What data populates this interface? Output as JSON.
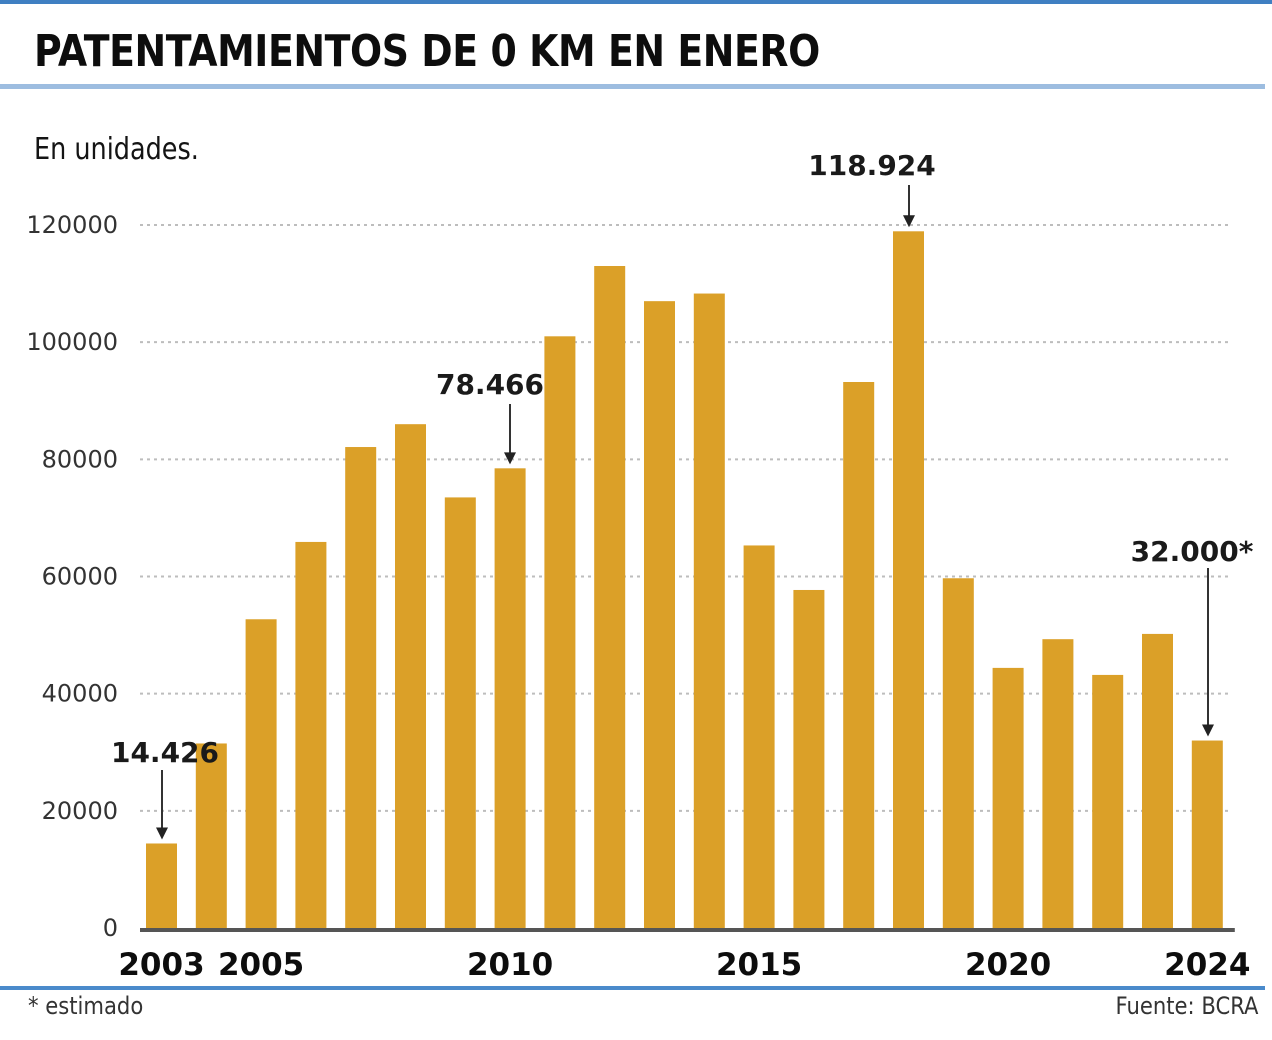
{
  "header": {
    "title": "PATENTAMIENTOS DE 0 KM EN ENERO",
    "subtitle": "En unidades."
  },
  "footer": {
    "footnote": "* estimado",
    "source": "Fuente: BCRA"
  },
  "colors": {
    "bar": "#DBA028",
    "rule": "#4A8ACB",
    "gridline": "#BDBDBD",
    "axis": "#555555",
    "text": "#111111"
  },
  "chart_data": {
    "type": "bar",
    "title": "PATENTAMIENTOS DE 0 KM EN ENERO",
    "subtitle": "En unidades.",
    "xlabel": "",
    "ylabel": "En unidades.",
    "ylim": [
      0,
      120000
    ],
    "yticks": [
      0,
      20000,
      40000,
      60000,
      80000,
      100000,
      120000
    ],
    "ytick_labels": [
      "0",
      "20000",
      "40000",
      "60000",
      "80000",
      "100000",
      "120000"
    ],
    "grid": true,
    "categories": [
      "2003",
      "2004",
      "2005",
      "2006",
      "2007",
      "2008",
      "2009",
      "2010",
      "2011",
      "2012",
      "2013",
      "2014",
      "2015",
      "2016",
      "2017",
      "2018",
      "2019",
      "2020",
      "2021",
      "2022",
      "2023",
      "2024"
    ],
    "xtick_labels": [
      {
        "category": "2003",
        "label": "2003"
      },
      {
        "category": "2005",
        "label": "2005"
      },
      {
        "category": "2010",
        "label": "2010"
      },
      {
        "category": "2015",
        "label": "2015"
      },
      {
        "category": "2020",
        "label": "2020"
      },
      {
        "category": "2024",
        "label": "2024"
      }
    ],
    "values": [
      14426,
      31500,
      52700,
      65900,
      82100,
      86000,
      73500,
      78466,
      101000,
      113000,
      107000,
      108300,
      65300,
      57700,
      93200,
      118924,
      59700,
      44400,
      49300,
      43200,
      50200,
      32000
    ],
    "annotations": [
      {
        "category": "2003",
        "label": "14.426"
      },
      {
        "category": "2010",
        "label": "78.466"
      },
      {
        "category": "2018",
        "label": "118.924"
      },
      {
        "category": "2024",
        "label": "32.000*"
      }
    ],
    "legend": "none"
  }
}
